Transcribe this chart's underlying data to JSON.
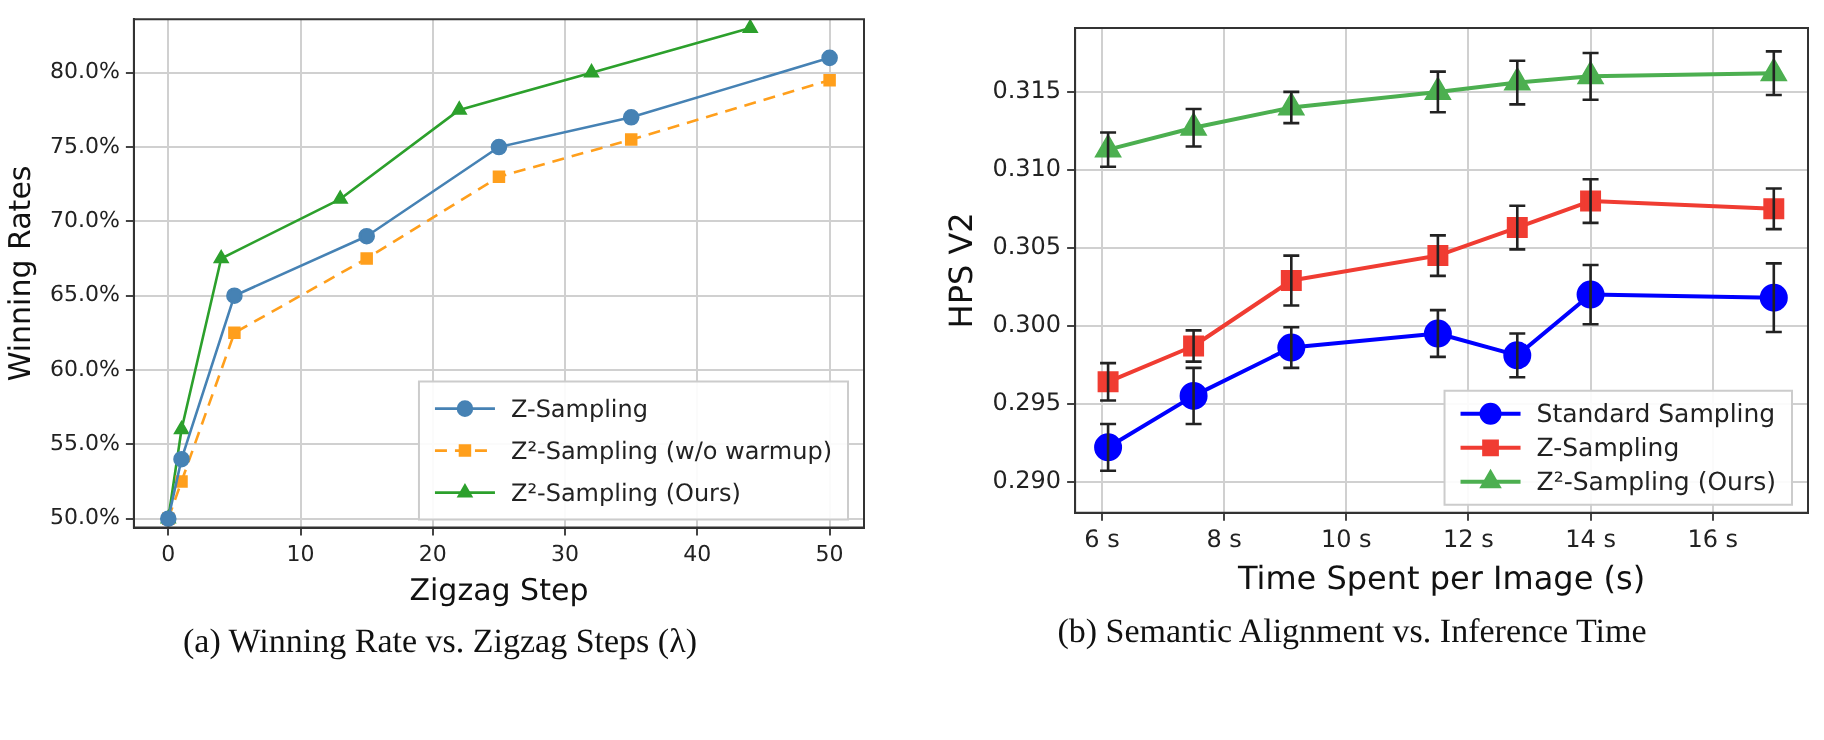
{
  "chart_data": [
    {
      "type": "line",
      "title": "(a) Winning Rate vs. Zigzag Steps (λ)",
      "xlabel": "Zigzag Step",
      "ylabel": "Winning Rates",
      "xlim": [
        -2.6,
        52.6
      ],
      "xticks": [
        0,
        10,
        20,
        30,
        40,
        50
      ],
      "ylim": [
        49.4,
        83.6
      ],
      "yticks": [
        {
          "value": 50,
          "label": "50.0%"
        },
        {
          "value": 55,
          "label": "55.0%"
        },
        {
          "value": 60,
          "label": "60.0%"
        },
        {
          "value": 65,
          "label": "65.0%"
        },
        {
          "value": 70,
          "label": "70.0%"
        },
        {
          "value": 75,
          "label": "75.0%"
        },
        {
          "value": 80,
          "label": "80.0%"
        }
      ],
      "grid": true,
      "legend": "bottom right",
      "series": [
        {
          "name": "Z-Sampling",
          "color": "#4682b4",
          "marker": "circle",
          "line_style": "solid",
          "x": [
            0,
            1,
            5,
            15,
            25,
            35,
            50
          ],
          "values": [
            50,
            54,
            65,
            69,
            75,
            77,
            81
          ]
        },
        {
          "name": "Z²-Sampling (w/o warmup)",
          "color": "#ff9f1c",
          "marker": "square",
          "line_style": "dashed",
          "x": [
            0,
            1,
            5,
            15,
            25,
            35,
            50
          ],
          "values": [
            50,
            52.5,
            62.5,
            67.5,
            73,
            75.5,
            79.5
          ]
        },
        {
          "name": "Z²-Sampling (Ours)",
          "color": "#2ca02c",
          "marker": "triangle",
          "line_style": "solid",
          "x": [
            0,
            1,
            4,
            13,
            22,
            32,
            44
          ],
          "values": [
            50,
            56,
            67.5,
            71.5,
            77.5,
            80,
            83
          ]
        }
      ]
    },
    {
      "type": "line",
      "title": "(b) Semantic Alignment vs. Inference Time",
      "xlabel": "Time Spent per Image (s)",
      "ylabel": "HPS V2",
      "xlim": [
        5.56,
        17.56
      ],
      "xticks": [
        {
          "value": 6,
          "label": "6 s"
        },
        {
          "value": 8,
          "label": "8 s"
        },
        {
          "value": 10,
          "label": "10 s"
        },
        {
          "value": 12,
          "label": "12 s"
        },
        {
          "value": 14,
          "label": "14 s"
        },
        {
          "value": 16,
          "label": "16 s"
        }
      ],
      "ylim": [
        0.288,
        0.3191
      ],
      "yticks": [
        {
          "value": 0.29,
          "label": "0.290"
        },
        {
          "value": 0.295,
          "label": "0.295"
        },
        {
          "value": 0.3,
          "label": "0.300"
        },
        {
          "value": 0.305,
          "label": "0.305"
        },
        {
          "value": 0.31,
          "label": "0.310"
        },
        {
          "value": 0.315,
          "label": "0.315"
        }
      ],
      "grid": true,
      "legend": "bottom right",
      "series": [
        {
          "name": "Standard Sampling",
          "color": "#0000ff",
          "marker": "circle",
          "line_style": "solid",
          "x": [
            6.1,
            7.5,
            9.1,
            11.5,
            12.8,
            14,
            17
          ],
          "values": [
            0.2922,
            0.2955,
            0.2986,
            0.2995,
            0.2981,
            0.302,
            0.3018
          ],
          "errors": [
            0.0015,
            0.0018,
            0.0013,
            0.0015,
            0.0014,
            0.0019,
            0.0022
          ]
        },
        {
          "name": "Z-Sampling",
          "color": "#f03c32",
          "marker": "square",
          "line_style": "solid",
          "x": [
            6.1,
            7.5,
            9.1,
            11.5,
            12.8,
            14,
            17
          ],
          "values": [
            0.2964,
            0.2987,
            0.3029,
            0.3045,
            0.3063,
            0.308,
            0.3075
          ],
          "errors": [
            0.0012,
            0.001,
            0.0016,
            0.0013,
            0.0014,
            0.0014,
            0.0013
          ]
        },
        {
          "name": "Z²-Sampling (Ours)",
          "color": "#4caf50",
          "marker": "triangle",
          "line_style": "solid",
          "x": [
            6.1,
            7.5,
            9.1,
            11.5,
            12.8,
            14,
            17
          ],
          "values": [
            0.3113,
            0.3127,
            0.314,
            0.315,
            0.3156,
            0.316,
            0.3162
          ],
          "errors": [
            0.0011,
            0.0012,
            0.001,
            0.0013,
            0.0014,
            0.0015,
            0.0014
          ]
        }
      ]
    }
  ]
}
